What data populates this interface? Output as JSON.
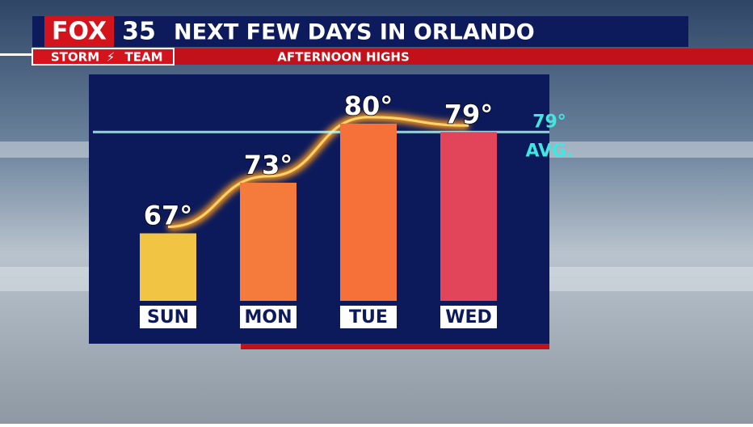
{
  "brand": {
    "network": "FOX",
    "channel": "35",
    "team_left": "STORM",
    "team_right": "TEAM"
  },
  "chart_data": {
    "type": "bar",
    "title": "NEXT FEW DAYS IN ORLANDO",
    "subtitle": "AFTERNOON HIGHS",
    "categories": [
      "SUN",
      "MON",
      "TUE",
      "WED"
    ],
    "values": [
      67,
      73,
      80,
      79
    ],
    "value_labels": [
      "67°",
      "73°",
      "80°",
      "79°"
    ],
    "colors": [
      "#f2c443",
      "#f47b3b",
      "#f6703a",
      "#e2455a"
    ],
    "average": {
      "value": 79,
      "label": "79°"
    },
    "average_label": "AVG."
  }
}
